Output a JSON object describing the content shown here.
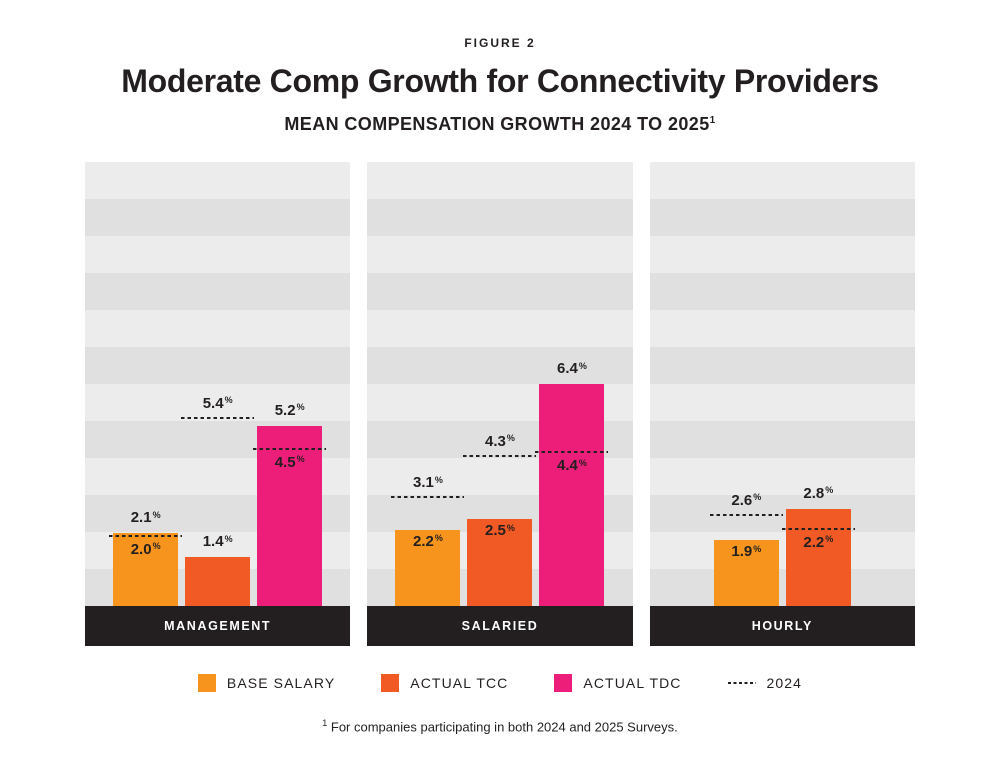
{
  "header": {
    "figure_label": "FIGURE 2",
    "title": "Moderate Comp Growth for Connectivity Providers",
    "subtitle": "MEAN COMPENSATION GROWTH 2024 TO 2025",
    "subtitle_footnote_marker": "1"
  },
  "footnote": {
    "marker": "1",
    "text": "For companies participating in both 2024 and 2025 Surveys."
  },
  "colors": {
    "base_salary": "#F7941E",
    "actual_tcc": "#F15A24",
    "actual_tdc": "#EC1E79",
    "line_2024": "#231F20",
    "panel_stripe_light": "#ECECEC",
    "panel_stripe_dark": "#E0E0E0",
    "group_footer_bg": "#231F20",
    "group_footer_text": "#FFFFFF"
  },
  "chart_data": {
    "type": "bar",
    "title": "Moderate Comp Growth for Connectivity Providers",
    "subtitle": "MEAN COMPENSATION GROWTH 2024 TO 2025",
    "unit": "%",
    "ylim": [
      0,
      12.8
    ],
    "grid": "striped-bands",
    "comparison_line_label": "2024",
    "series_names": [
      "BASE SALARY",
      "ACTUAL TCC",
      "ACTUAL TDC"
    ],
    "groups": [
      {
        "label": "MANAGEMENT",
        "bars": [
          {
            "series": "BASE SALARY",
            "value_2025": 2.1,
            "value_2024": 2.0,
            "value_label_pos": "above",
            "prev_label_pos": "inside"
          },
          {
            "series": "ACTUAL TCC",
            "value_2025": 1.4,
            "value_2024": 5.4,
            "value_label_pos": "above",
            "prev_label_pos": "above"
          },
          {
            "series": "ACTUAL TDC",
            "value_2025": 5.2,
            "value_2024": 4.5,
            "value_label_pos": "above",
            "prev_label_pos": "inside"
          }
        ]
      },
      {
        "label": "SALARIED",
        "bars": [
          {
            "series": "BASE SALARY",
            "value_2025": 2.2,
            "value_2024": 3.1,
            "value_label_pos": "inside",
            "prev_label_pos": "above"
          },
          {
            "series": "ACTUAL TCC",
            "value_2025": 2.5,
            "value_2024": 4.3,
            "value_label_pos": "inside",
            "prev_label_pos": "above"
          },
          {
            "series": "ACTUAL TDC",
            "value_2025": 6.4,
            "value_2024": 4.4,
            "value_label_pos": "above",
            "prev_label_pos": "inside"
          }
        ]
      },
      {
        "label": "HOURLY",
        "bars": [
          {
            "series": "BASE SALARY",
            "value_2025": 1.9,
            "value_2024": 2.6,
            "value_label_pos": "inside",
            "prev_label_pos": "above"
          },
          {
            "series": "ACTUAL TCC",
            "value_2025": 2.8,
            "value_2024": 2.2,
            "value_label_pos": "above",
            "prev_label_pos": "inside"
          }
        ]
      }
    ],
    "legend": [
      {
        "label": "BASE SALARY",
        "swatch": "base_salary"
      },
      {
        "label": "ACTUAL TCC",
        "swatch": "actual_tcc"
      },
      {
        "label": "ACTUAL TDC",
        "swatch": "actual_tdc"
      },
      {
        "label": "2024",
        "swatch": "dashed-line"
      }
    ]
  }
}
